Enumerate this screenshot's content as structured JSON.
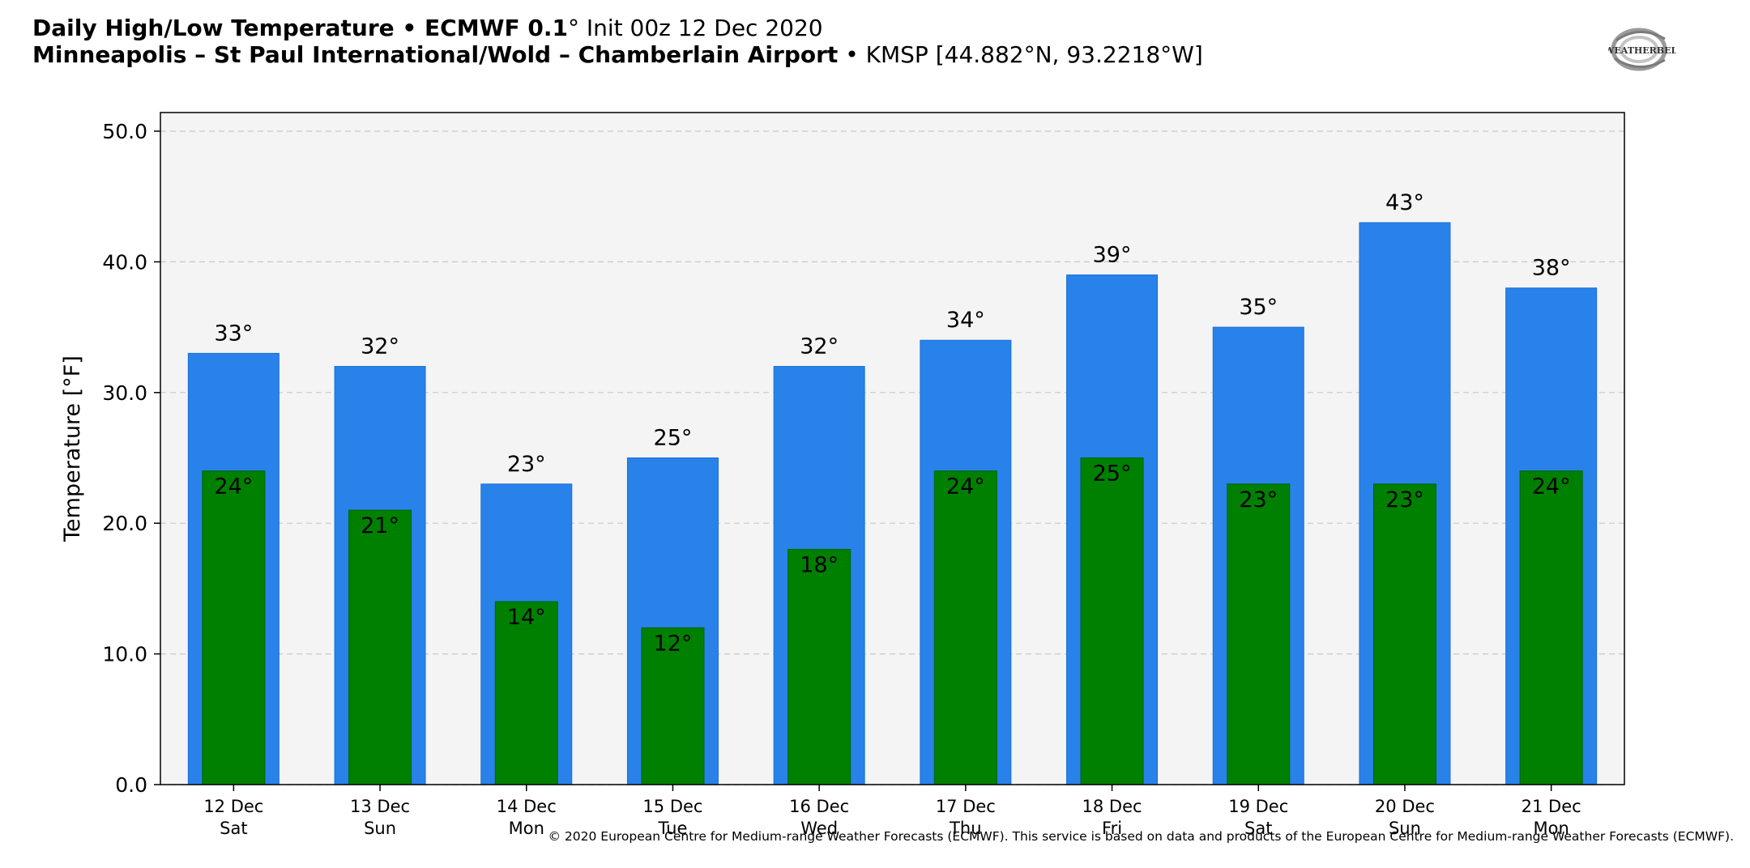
{
  "header": {
    "title_bold": "Daily High/Low Temperature • ECMWF 0.1",
    "title_rest": "° Init 00z 12 Dec 2020",
    "location_bold": "Minneapolis – St Paul International/Wold – Chamberlain Airport",
    "location_rest": " • KMSP [44.882°N, 93.2218°W]"
  },
  "logo": {
    "text": "WEATHERBELL",
    "icon": "weatherbell-logo"
  },
  "footer": {
    "credit": "© 2020 European Centre for Medium-range Weather Forecasts (ECMWF). This service is based on data and products of the European Centre for Medium-range Weather Forecasts (ECMWF)."
  },
  "chart_data": {
    "type": "bar",
    "ylabel": "Temperature [°F]",
    "ylim": [
      0,
      50
    ],
    "yticks": [
      "0.0",
      "10.0",
      "20.0",
      "30.0",
      "40.0",
      "50.0"
    ],
    "grid": "horizontal dashed",
    "categories": [
      "12 Dec",
      "13 Dec",
      "14 Dec",
      "15 Dec",
      "16 Dec",
      "17 Dec",
      "18 Dec",
      "19 Dec",
      "20 Dec",
      "21 Dec"
    ],
    "weekdays": [
      "Sat",
      "Sun",
      "Mon",
      "Tue",
      "Wed",
      "Thu",
      "Fri",
      "Sat",
      "Sun",
      "Mon"
    ],
    "series": [
      {
        "key": "high",
        "values": [
          33,
          32,
          23,
          25,
          32,
          34,
          39,
          35,
          43,
          38
        ],
        "color": "#2982ea",
        "labels": [
          "33°",
          "32°",
          "23°",
          "25°",
          "32°",
          "34°",
          "39°",
          "35°",
          "43°",
          "38°"
        ]
      },
      {
        "key": "low",
        "values": [
          24,
          21,
          14,
          12,
          18,
          24,
          25,
          23,
          23,
          24
        ],
        "color": "#008000",
        "labels": [
          "24°",
          "21°",
          "14°",
          "12°",
          "18°",
          "24°",
          "25°",
          "23°",
          "23°",
          "24°"
        ]
      }
    ],
    "colors": {
      "plot_background": "#f4f4f4",
      "grid": "#c8c8c8"
    }
  }
}
